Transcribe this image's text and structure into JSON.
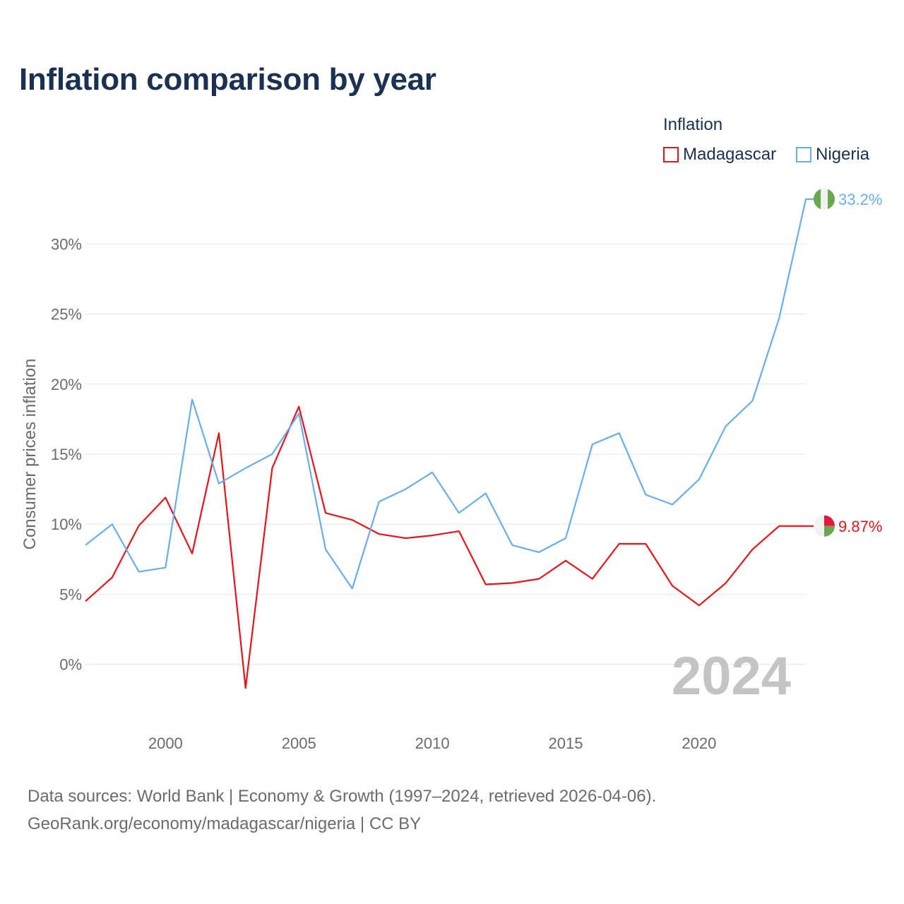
{
  "title": "Inflation comparison by year",
  "legend": {
    "title": "Inflation",
    "items": [
      {
        "label": "Madagascar",
        "color": "#e8141c"
      },
      {
        "label": "Nigeria",
        "color": "#6aaee8"
      }
    ]
  },
  "footer": {
    "line1": "Data sources: World Bank | Economy & Growth (1997–2024, retrieved 2026-04-06).",
    "line2": "GeoRank.org/economy/madagascar/nigeria | CC BY"
  },
  "chart_data": {
    "type": "line",
    "ylabel": "Consumer prices inflation",
    "xlabel": "",
    "ylim": [
      -3.5,
      33.5
    ],
    "xlim": [
      1997,
      2024
    ],
    "yticks": [
      0,
      5,
      10,
      15,
      20,
      25,
      30
    ],
    "ytick_labels": [
      "0%",
      "5%",
      "10%",
      "15%",
      "20%",
      "25%",
      "30%"
    ],
    "xticks": [
      2000,
      2005,
      2010,
      2015,
      2020
    ],
    "xtick_labels": [
      "2000",
      "2005",
      "2010",
      "2015",
      "2020"
    ],
    "grid": true,
    "watermark_year": "2024",
    "x": [
      1997,
      1998,
      1999,
      2000,
      2001,
      2002,
      2003,
      2004,
      2005,
      2006,
      2007,
      2008,
      2009,
      2010,
      2011,
      2012,
      2013,
      2014,
      2015,
      2016,
      2017,
      2018,
      2019,
      2020,
      2021,
      2022,
      2023,
      2024
    ],
    "series": [
      {
        "name": "Madagascar",
        "color": "#e8141c",
        "end_label": "9.87%",
        "flag_colors": [
          "#f2f2f2",
          "#e8163b",
          "#6aa84f"
        ],
        "values": [
          4.5,
          6.2,
          9.9,
          11.9,
          7.9,
          16.5,
          -1.7,
          14.0,
          18.4,
          10.8,
          10.3,
          9.3,
          9.0,
          9.2,
          9.5,
          5.7,
          5.8,
          6.1,
          7.4,
          6.1,
          8.6,
          8.6,
          5.6,
          4.2,
          5.8,
          8.2,
          9.87,
          9.87
        ]
      },
      {
        "name": "Nigeria",
        "color": "#6aaee8",
        "end_label": "33.2%",
        "flag_colors": [
          "#6aa84f",
          "#f2f2f2",
          "#6aa84f"
        ],
        "values": [
          8.5,
          10.0,
          6.6,
          6.9,
          18.9,
          12.9,
          14.0,
          15.0,
          17.9,
          8.2,
          5.4,
          11.6,
          12.5,
          13.7,
          10.8,
          12.2,
          8.5,
          8.0,
          9.0,
          15.7,
          16.5,
          12.1,
          11.4,
          13.2,
          17.0,
          18.8,
          24.7,
          33.2
        ]
      }
    ]
  }
}
